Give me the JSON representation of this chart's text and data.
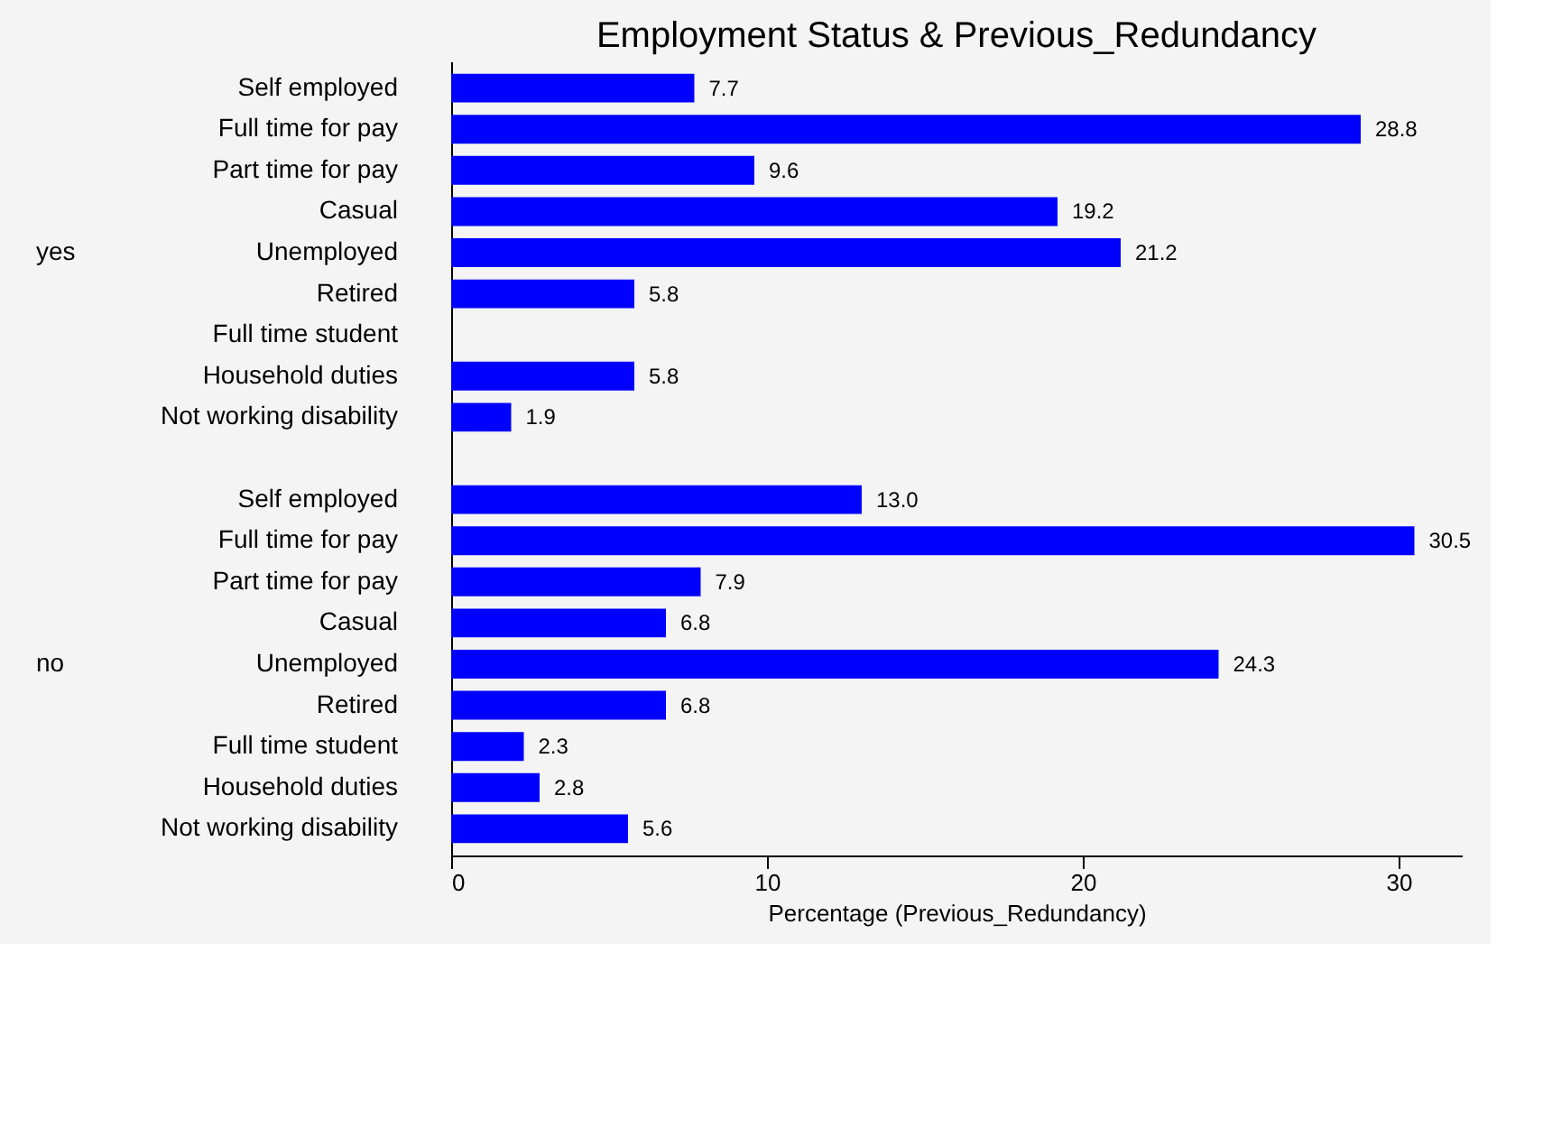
{
  "chart_data": {
    "type": "bar",
    "orientation": "horizontal",
    "title": "Employment Status & Previous_Redundancy",
    "xlabel": "Percentage (Previous_Redundancy)",
    "categories": [
      "Self employed",
      "Full time for pay",
      "Part time for pay",
      "Casual",
      "Unemployed",
      "Retired",
      "Full time student",
      "Household duties",
      "Not working disability",
      null,
      "Self employed",
      "Full time for pay",
      "Part time for pay",
      "Casual",
      "Unemployed",
      "Retired",
      "Full time student",
      "Household duties",
      "Not working disability"
    ],
    "values": [
      7.7,
      28.8,
      9.6,
      19.2,
      21.2,
      5.8,
      null,
      5.8,
      1.9,
      null,
      13.0,
      30.5,
      7.9,
      6.8,
      24.3,
      6.8,
      2.3,
      2.8,
      5.6
    ],
    "value_labels": [
      "7.7",
      "28.8",
      "9.6",
      "19.2",
      "21.2",
      "5.8",
      null,
      "5.8",
      "1.9",
      null,
      "13.0",
      "30.5",
      "7.9",
      "6.8",
      "24.3",
      "6.8",
      "2.3",
      "2.8",
      "5.6"
    ],
    "annotations": [
      "yes",
      "no"
    ],
    "color": "#0000ff",
    "xlim": [
      0,
      32
    ],
    "xticks": [
      0,
      10,
      20,
      30
    ],
    "grid": false,
    "legend": false
  }
}
